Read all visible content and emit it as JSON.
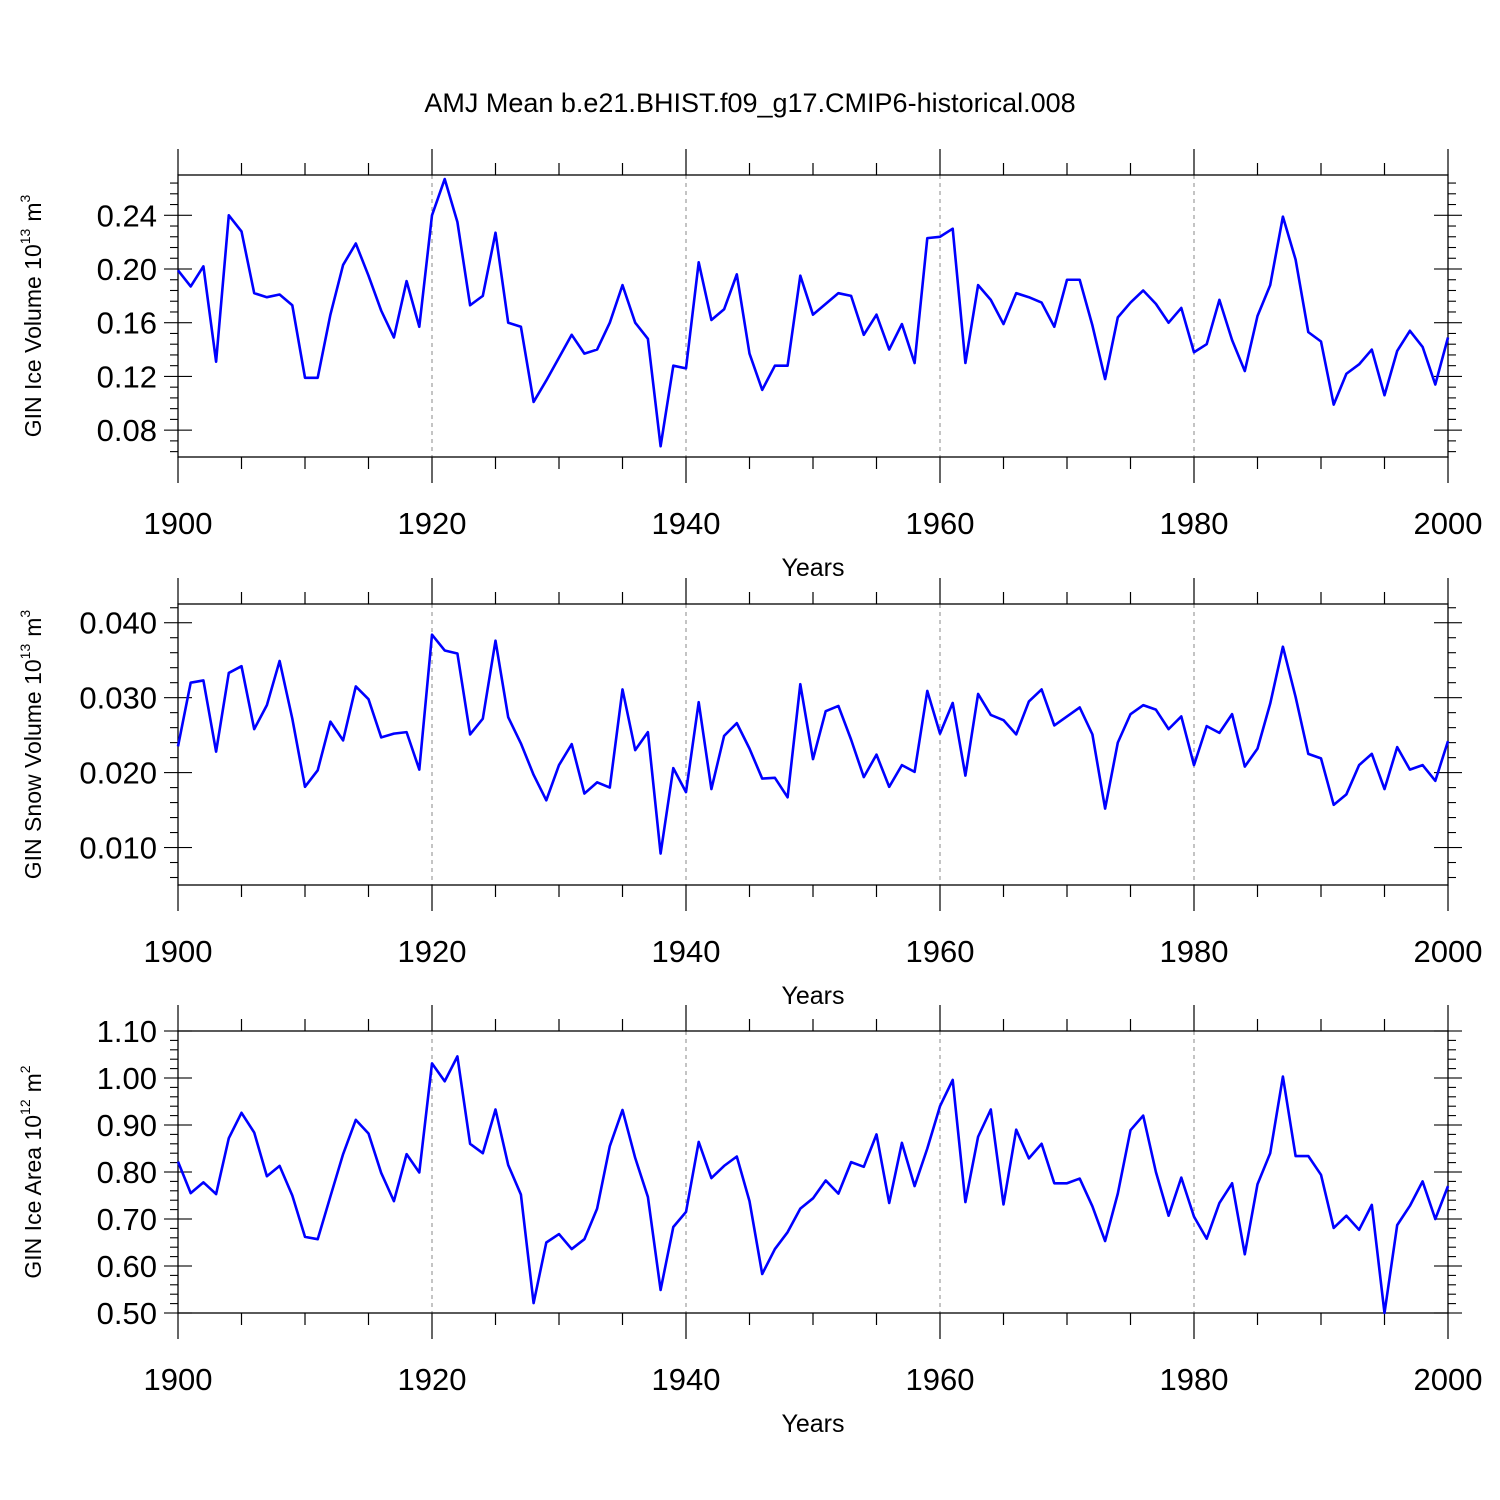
{
  "title": "AMJ Mean b.e21.BHIST.f09_g17.CMIP6-historical.008",
  "chart_data": [
    {
      "type": "line",
      "name": "ice-volume",
      "title": "AMJ Mean b.e21.BHIST.f09_g17.CMIP6-historical.008",
      "xlabel": "Years",
      "ylabel": "GIN Ice Volume 10",
      "ylabel_exp": "13",
      "ylabel_unit": "m",
      "ylabel_unit_exp": "3",
      "xlim": [
        1900,
        2000
      ],
      "ylim": [
        0.06,
        0.27
      ],
      "xticks": [
        1900,
        1920,
        1940,
        1960,
        1980,
        2000
      ],
      "yticks": [
        "0.08",
        "0.12",
        "0.16",
        "0.20",
        "0.24"
      ],
      "line_color": "#0000ff",
      "series": [
        {
          "name": "ice volume",
          "x_start": 1900,
          "values": [
            0.199,
            0.187,
            0.202,
            0.131,
            0.24,
            0.228,
            0.182,
            0.179,
            0.181,
            0.173,
            0.119,
            0.119,
            0.166,
            0.203,
            0.219,
            0.195,
            0.169,
            0.149,
            0.191,
            0.157,
            0.24,
            0.267,
            0.235,
            0.173,
            0.18,
            0.227,
            0.16,
            0.157,
            0.101,
            0.117,
            0.134,
            0.151,
            0.137,
            0.14,
            0.16,
            0.188,
            0.16,
            0.148,
            0.068,
            0.128,
            0.126,
            0.205,
            0.162,
            0.17,
            0.196,
            0.137,
            0.11,
            0.128,
            0.128,
            0.195,
            0.166,
            0.174,
            0.182,
            0.18,
            0.151,
            0.166,
            0.14,
            0.159,
            0.13,
            0.223,
            0.224,
            0.23,
            0.13,
            0.188,
            0.177,
            0.159,
            0.182,
            0.179,
            0.175,
            0.157,
            0.192,
            0.192,
            0.158,
            0.118,
            0.164,
            0.175,
            0.184,
            0.174,
            0.16,
            0.171,
            0.138,
            0.144,
            0.177,
            0.147,
            0.124,
            0.165,
            0.188,
            0.239,
            0.207,
            0.153,
            0.146,
            0.099,
            0.122,
            0.129,
            0.14,
            0.106,
            0.139,
            0.154,
            0.142,
            0.114,
            0.149
          ]
        }
      ]
    },
    {
      "type": "line",
      "name": "snow-volume",
      "xlabel": "Years",
      "ylabel": "GIN Snow Volume 10",
      "ylabel_exp": "13",
      "ylabel_unit": "m",
      "ylabel_unit_exp": "3",
      "xlim": [
        1900,
        2000
      ],
      "ylim": [
        0.005,
        0.0425
      ],
      "xticks": [
        1900,
        1920,
        1940,
        1960,
        1980,
        2000
      ],
      "yticks": [
        "0.010",
        "0.020",
        "0.030",
        "0.040"
      ],
      "line_color": "#0000ff",
      "series": [
        {
          "name": "snow volume",
          "x_start": 1900,
          "values": [
            0.0235,
            0.032,
            0.0323,
            0.0228,
            0.0333,
            0.0342,
            0.0258,
            0.029,
            0.0349,
            0.0272,
            0.0181,
            0.0203,
            0.0268,
            0.0243,
            0.0315,
            0.0298,
            0.0247,
            0.0252,
            0.0254,
            0.0204,
            0.0384,
            0.0363,
            0.0359,
            0.0251,
            0.0272,
            0.0376,
            0.0274,
            0.0239,
            0.0197,
            0.0163,
            0.021,
            0.0238,
            0.0172,
            0.0187,
            0.018,
            0.0311,
            0.023,
            0.0254,
            0.0092,
            0.0206,
            0.0174,
            0.0294,
            0.0178,
            0.0249,
            0.0266,
            0.0232,
            0.0192,
            0.0193,
            0.0167,
            0.0318,
            0.0218,
            0.0282,
            0.0289,
            0.0244,
            0.0194,
            0.0224,
            0.0181,
            0.021,
            0.0201,
            0.0309,
            0.0252,
            0.0293,
            0.0196,
            0.0305,
            0.0277,
            0.027,
            0.0251,
            0.0295,
            0.0311,
            0.0263,
            0.0275,
            0.0287,
            0.0251,
            0.0152,
            0.024,
            0.0278,
            0.029,
            0.0284,
            0.0258,
            0.0275,
            0.021,
            0.0262,
            0.0253,
            0.0278,
            0.0208,
            0.0232,
            0.0292,
            0.0368,
            0.0301,
            0.0225,
            0.0219,
            0.0157,
            0.0171,
            0.021,
            0.0225,
            0.0178,
            0.0234,
            0.0204,
            0.021,
            0.0189,
            0.0242
          ]
        }
      ]
    },
    {
      "type": "line",
      "name": "ice-area",
      "xlabel": "Years",
      "ylabel": "GIN Ice Area 10",
      "ylabel_exp": "12",
      "ylabel_unit": "m",
      "ylabel_unit_exp": "2",
      "xlim": [
        1900,
        2000
      ],
      "ylim": [
        0.5,
        1.1
      ],
      "xticks": [
        1900,
        1920,
        1940,
        1960,
        1980,
        2000
      ],
      "yticks": [
        "0.50",
        "0.60",
        "0.70",
        "0.80",
        "0.90",
        "1.00",
        "1.10"
      ],
      "line_color": "#0000ff",
      "series": [
        {
          "name": "ice area",
          "x_start": 1900,
          "values": [
            0.822,
            0.755,
            0.778,
            0.753,
            0.872,
            0.926,
            0.884,
            0.791,
            0.813,
            0.75,
            0.662,
            0.657,
            0.748,
            0.838,
            0.911,
            0.882,
            0.798,
            0.738,
            0.838,
            0.799,
            1.031,
            0.993,
            1.046,
            0.86,
            0.84,
            0.933,
            0.815,
            0.752,
            0.521,
            0.65,
            0.668,
            0.636,
            0.657,
            0.722,
            0.855,
            0.932,
            0.83,
            0.747,
            0.549,
            0.683,
            0.715,
            0.864,
            0.787,
            0.813,
            0.833,
            0.738,
            0.583,
            0.636,
            0.672,
            0.722,
            0.744,
            0.782,
            0.754,
            0.821,
            0.811,
            0.88,
            0.734,
            0.862,
            0.77,
            0.85,
            0.94,
            0.996,
            0.736,
            0.875,
            0.933,
            0.731,
            0.89,
            0.829,
            0.86,
            0.776,
            0.776,
            0.786,
            0.727,
            0.653,
            0.754,
            0.889,
            0.92,
            0.8,
            0.707,
            0.788,
            0.705,
            0.658,
            0.734,
            0.776,
            0.625,
            0.774,
            0.84,
            1.003,
            0.834,
            0.834,
            0.794,
            0.681,
            0.707,
            0.677,
            0.73,
            0.5,
            0.687,
            0.728,
            0.78,
            0.7,
            0.77
          ]
        }
      ]
    }
  ]
}
